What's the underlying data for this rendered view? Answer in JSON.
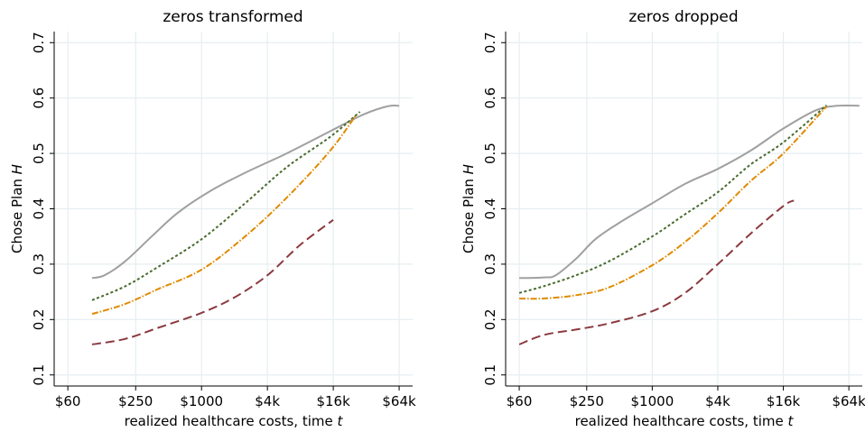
{
  "chart_data": [
    {
      "type": "line",
      "title": "zeros transformed",
      "xlabel": "realized healthcare costs, time",
      "xlabel_var": "t",
      "ylabel": "Chose Plan",
      "ylabel_var": "H",
      "x_scale": "log",
      "xlim": [
        45,
        85000
      ],
      "ylim": [
        0.08,
        0.72
      ],
      "x_ticks": [
        {
          "value": 60,
          "label": "$60"
        },
        {
          "value": 250,
          "label": "$250"
        },
        {
          "value": 1000,
          "label": "$1000"
        },
        {
          "value": 4000,
          "label": "$4k"
        },
        {
          "value": 16000,
          "label": "$16k"
        },
        {
          "value": 64000,
          "label": "$64k"
        }
      ],
      "y_ticks": [
        {
          "value": 0.1,
          "label": "0.1"
        },
        {
          "value": 0.2,
          "label": "0.2"
        },
        {
          "value": 0.3,
          "label": "0.3"
        },
        {
          "value": 0.4,
          "label": "0.4"
        },
        {
          "value": 0.5,
          "label": "0.5"
        },
        {
          "value": 0.6,
          "label": "0.6"
        },
        {
          "value": 0.7,
          "label": "0.7"
        }
      ],
      "grid": true,
      "series": [
        {
          "color": "#a0a0a0",
          "dash": "solid",
          "x": [
            100,
            130,
            200,
            350,
            600,
            1200,
            2500,
            6000,
            15000,
            30000,
            50000,
            64000
          ],
          "y": [
            0.275,
            0.28,
            0.305,
            0.35,
            0.392,
            0.432,
            0.465,
            0.5,
            0.54,
            0.57,
            0.585,
            0.586
          ]
        },
        {
          "color": "#4a6b2f",
          "dash": "short",
          "x": [
            100,
            200,
            400,
            1000,
            2500,
            6000,
            15000,
            28000
          ],
          "y": [
            0.235,
            0.26,
            0.295,
            0.345,
            0.41,
            0.475,
            0.53,
            0.575
          ]
        },
        {
          "color": "#e08a00",
          "dash": "dashdot",
          "x": [
            100,
            200,
            400,
            1000,
            2500,
            6000,
            15000,
            26000
          ],
          "y": [
            0.21,
            0.228,
            0.255,
            0.29,
            0.35,
            0.42,
            0.505,
            0.57
          ]
        },
        {
          "color": "#8b3a3f",
          "dash": "long",
          "x": [
            100,
            200,
            400,
            1000,
            2000,
            4000,
            8000,
            16000
          ],
          "y": [
            0.155,
            0.165,
            0.185,
            0.212,
            0.24,
            0.28,
            0.335,
            0.38
          ]
        }
      ]
    },
    {
      "type": "line",
      "title": "zeros dropped",
      "xlabel": "realized healthcare costs, time",
      "xlabel_var": "t",
      "ylabel": "Chose Plan",
      "ylabel_var": "H",
      "x_scale": "log",
      "xlim": [
        45,
        85000
      ],
      "ylim": [
        0.08,
        0.72
      ],
      "x_ticks": [
        {
          "value": 60,
          "label": "$60"
        },
        {
          "value": 250,
          "label": "$250"
        },
        {
          "value": 1000,
          "label": "$1000"
        },
        {
          "value": 4000,
          "label": "$4k"
        },
        {
          "value": 16000,
          "label": "$16k"
        },
        {
          "value": 64000,
          "label": "$64k"
        }
      ],
      "y_ticks": [
        {
          "value": 0.1,
          "label": "0.1"
        },
        {
          "value": 0.2,
          "label": "0.2"
        },
        {
          "value": 0.3,
          "label": "0.3"
        },
        {
          "value": 0.4,
          "label": "0.4"
        },
        {
          "value": 0.5,
          "label": "0.5"
        },
        {
          "value": 0.6,
          "label": "0.6"
        },
        {
          "value": 0.7,
          "label": "0.7"
        }
      ],
      "grid": true,
      "series": [
        {
          "color": "#a0a0a0",
          "dash": "solid",
          "x": [
            60,
            100,
            130,
            200,
            300,
            500,
            1000,
            2000,
            4000,
            8000,
            16000,
            32000,
            50000,
            80000
          ],
          "y": [
            0.275,
            0.276,
            0.28,
            0.31,
            0.345,
            0.375,
            0.41,
            0.445,
            0.472,
            0.505,
            0.545,
            0.578,
            0.586,
            0.586
          ]
        },
        {
          "color": "#4a6b2f",
          "dash": "short",
          "x": [
            60,
            100,
            200,
            400,
            1000,
            2000,
            4000,
            8000,
            16000,
            40000
          ],
          "y": [
            0.248,
            0.26,
            0.28,
            0.305,
            0.35,
            0.39,
            0.43,
            0.48,
            0.52,
            0.587
          ]
        },
        {
          "color": "#e08a00",
          "dash": "dashdot",
          "x": [
            60,
            100,
            200,
            400,
            1000,
            2000,
            4000,
            8000,
            16000,
            40000
          ],
          "y": [
            0.238,
            0.238,
            0.244,
            0.258,
            0.298,
            0.34,
            0.392,
            0.45,
            0.5,
            0.585
          ]
        },
        {
          "color": "#8b3a3f",
          "dash": "long",
          "x": [
            60,
            100,
            200,
            400,
            1000,
            2000,
            4000,
            8000,
            16000,
            20000
          ],
          "y": [
            0.155,
            0.172,
            0.182,
            0.193,
            0.215,
            0.248,
            0.3,
            0.355,
            0.405,
            0.415
          ]
        }
      ]
    }
  ]
}
